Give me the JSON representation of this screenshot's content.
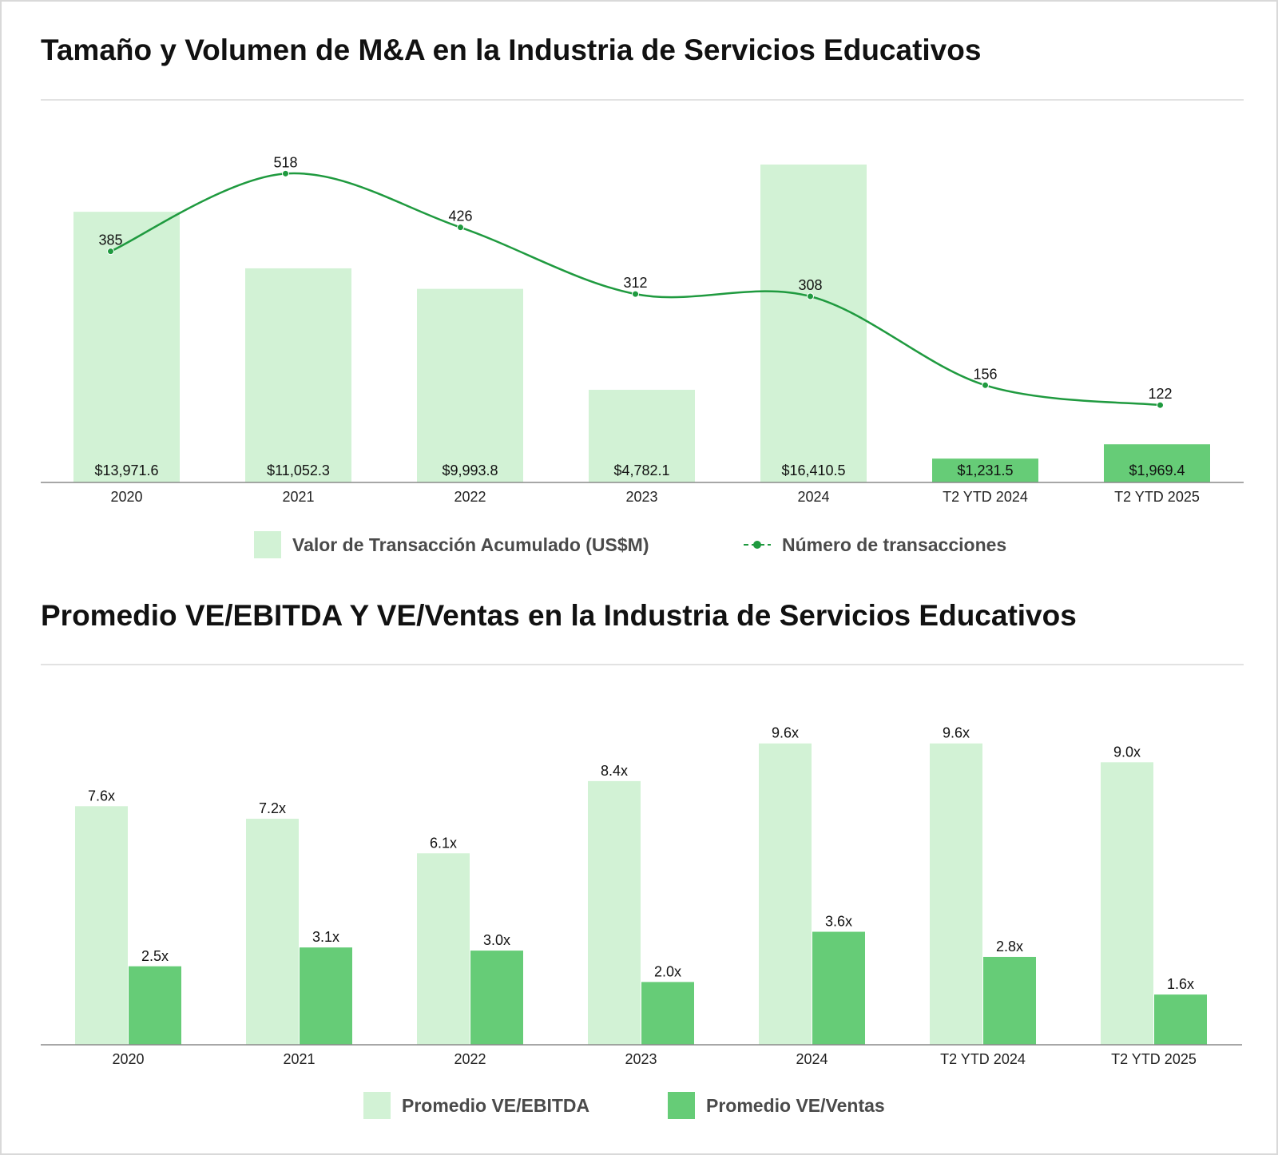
{
  "colors": {
    "light": "#d2f2d5",
    "dark": "#66cc77",
    "line": "#1f9a3f",
    "text": "#111111",
    "axis": "#8a8a8a"
  },
  "titles": {
    "chart1": "Tamaño y Volumen de M&A en la Industria de Servicios Educativos",
    "chart2": "Promedio VE/EBITDA Y VE/Ventas en la Industria de Servicios Educativos"
  },
  "legend1": {
    "bars": "Valor de Transacción Acumulado (US$M)",
    "line": "Número de transacciones"
  },
  "legend2": {
    "ebitda": "Promedio VE/EBITDA",
    "ventas": "Promedio VE/Ventas"
  },
  "chart_data": [
    {
      "type": "bar",
      "categories": [
        "2020",
        "2021",
        "2022",
        "2023",
        "2024",
        "T2 YTD 2024",
        "T2 YTD 2025"
      ],
      "series": [
        {
          "name": "Valor de Transacción Acumulado (US$M)",
          "values": [
            13971.6,
            11052.3,
            9993.8,
            4782.1,
            16410.5,
            1231.5,
            1969.4
          ],
          "labels": [
            "$13,971.6",
            "$11,052.3",
            "$9,993.8",
            "$4,782.1",
            "$16,410.5",
            "$1,231.5",
            "$1,969.4"
          ],
          "highlight": [
            false,
            false,
            false,
            false,
            false,
            true,
            true
          ]
        },
        {
          "name": "Número de transacciones",
          "type": "line",
          "values": [
            385,
            518,
            426,
            312,
            308,
            156,
            122
          ],
          "labels": [
            "385",
            "518",
            "426",
            "312",
            "308",
            "156",
            "122"
          ]
        }
      ],
      "title": "Tamaño y Volumen de M&A en la Industria de Servicios Educativos"
    },
    {
      "type": "bar",
      "categories": [
        "2020",
        "2021",
        "2022",
        "2023",
        "2024",
        "T2 YTD 2024",
        "T2 YTD 2025"
      ],
      "series": [
        {
          "name": "Promedio VE/EBITDA",
          "values": [
            7.6,
            7.2,
            6.1,
            8.4,
            9.6,
            9.6,
            9.0
          ],
          "labels": [
            "7.6x",
            "7.2x",
            "6.1x",
            "8.4x",
            "9.6x",
            "9.6x",
            "9.0x"
          ]
        },
        {
          "name": "Promedio VE/Ventas",
          "values": [
            2.5,
            3.1,
            3.0,
            2.0,
            3.6,
            2.8,
            1.6
          ],
          "labels": [
            "2.5x",
            "3.1x",
            "3.0x",
            "2.0x",
            "3.6x",
            "2.8x",
            "1.6x"
          ]
        }
      ],
      "title": "Promedio VE/EBITDA Y VE/Ventas en la Industria de Servicios Educativos"
    }
  ]
}
